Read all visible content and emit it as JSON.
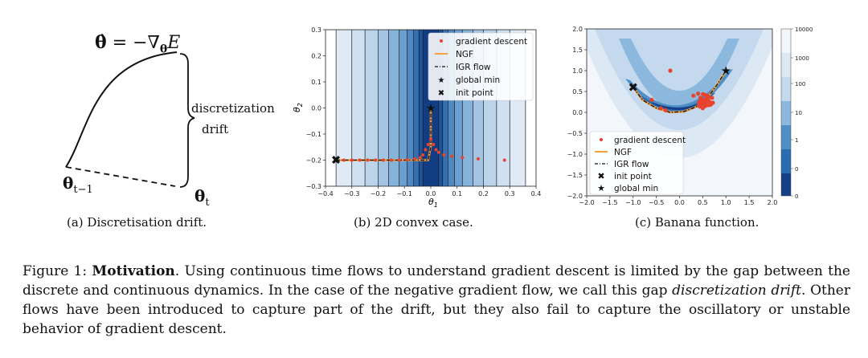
{
  "panel_a": {
    "equation_lhs": "θ̇",
    "equation_rhs": "= −∇",
    "equation_sub": "θ",
    "equation_E": "E",
    "bracket_label_1": "discretization",
    "bracket_label_2": "drift",
    "theta_prev": "θ",
    "theta_prev_sub": "t−1",
    "theta_next": "θ",
    "theta_next_sub": "t",
    "subcaption": "(a) Discretisation drift."
  },
  "panel_b": {
    "subcaption": "(b) 2D convex case.",
    "xlabel": "θ",
    "xlabel_sub": "1",
    "ylabel": "θ",
    "ylabel_sub": "2",
    "xticks": [
      "−0.4",
      "−0.3",
      "−0.2",
      "−0.1",
      "0.0",
      "0.1",
      "0.2",
      "0.3",
      "0.4"
    ],
    "yticks": [
      "0.3",
      "0.2",
      "0.1",
      "0.0",
      "−0.1",
      "−0.2",
      "−0.3"
    ],
    "legend": [
      "gradient descent",
      "NGF",
      "IGR flow",
      "global min",
      "init point"
    ]
  },
  "panel_c": {
    "subcaption": "(c) Banana function.",
    "xticks": [
      "−2.0",
      "−1.5",
      "−1.0",
      "−0.5",
      "0.0",
      "0.5",
      "1.0",
      "1.5",
      "2.0"
    ],
    "yticks": [
      "2.0",
      "1.5",
      "1.0",
      "0.5",
      "0.0",
      "−0.5",
      "−1.0",
      "−1.5",
      "−2.0"
    ],
    "colorbar_ticks": [
      "10000",
      "1000",
      "100",
      "10",
      "1",
      "0",
      "0"
    ],
    "legend": [
      "gradient descent",
      "NGF",
      "IGR flow",
      "init point",
      "global min"
    ]
  },
  "caption": {
    "prefix": "Figure 1: ",
    "bold": "Motivation",
    "text1": ". Using continuous time flows to understand gradient descent is limited by the gap between the discrete and continuous dynamics. In the case of the negative gradient flow, we call this gap ",
    "italic": "discretization drift",
    "text2": ". Other flows have been introduced to capture part of the drift, but they also fail to capture the oscillatory or unstable behavior of gradient descent."
  },
  "chart_data": [
    {
      "type": "scatter",
      "xlabel": "θ1",
      "ylabel": "θ2",
      "xlim": [
        -0.4,
        0.4
      ],
      "ylim": [
        -0.3,
        0.3
      ],
      "series": [
        {
          "name": "gradient descent",
          "x": [
            -0.36,
            -0.33,
            -0.3,
            -0.27,
            -0.24,
            -0.21,
            -0.18,
            -0.15,
            -0.12,
            -0.09,
            -0.06,
            -0.04,
            -0.03,
            -0.02,
            -0.01,
            0.0,
            0.01,
            0.02,
            0.03,
            0.05,
            0.08,
            0.12,
            0.18,
            0.28
          ],
          "y": [
            -0.2,
            -0.2,
            -0.2,
            -0.2,
            -0.2,
            -0.2,
            -0.2,
            -0.2,
            -0.2,
            -0.198,
            -0.195,
            -0.19,
            -0.18,
            -0.16,
            -0.14,
            -0.12,
            -0.14,
            -0.16,
            -0.17,
            -0.18,
            -0.185,
            -0.19,
            -0.195,
            -0.2
          ]
        },
        {
          "name": "NGF",
          "x": [
            -0.36,
            -0.01,
            0.0,
            0.0
          ],
          "y": [
            -0.2,
            -0.2,
            -0.15,
            0.0
          ]
        },
        {
          "name": "IGR flow",
          "x": [
            -0.36,
            -0.01,
            0.0,
            0.0
          ],
          "y": [
            -0.2,
            -0.2,
            -0.15,
            0.0
          ]
        },
        {
          "name": "global min",
          "x": [
            0.0
          ],
          "y": [
            0.0
          ]
        },
        {
          "name": "init point",
          "x": [
            -0.36
          ],
          "y": [
            -0.2
          ]
        }
      ]
    },
    {
      "type": "scatter",
      "xlim": [
        -2.0,
        2.0
      ],
      "ylim": [
        -2.0,
        2.0
      ],
      "series": [
        {
          "name": "gradient descent",
          "x": [
            -0.2,
            -0.6,
            -0.3,
            -0.4,
            0.3,
            0.45,
            0.5,
            0.55,
            0.6,
            0.5,
            0.55,
            0.65,
            0.4,
            0.6,
            0.7,
            0.5
          ],
          "y": [
            1.0,
            0.3,
            0.05,
            0.1,
            0.4,
            0.35,
            0.3,
            0.25,
            0.3,
            0.2,
            0.15,
            0.25,
            0.45,
            0.4,
            0.35,
            0.1
          ]
        },
        {
          "name": "NGF",
          "x": [
            -1.0,
            -0.8,
            -0.5,
            -0.2,
            0.1,
            0.4,
            0.6,
            0.8,
            1.0
          ],
          "y": [
            0.6,
            0.3,
            0.1,
            0.0,
            0.02,
            0.15,
            0.35,
            0.65,
            1.0
          ]
        },
        {
          "name": "IGR flow",
          "x": [
            -1.0,
            -0.8,
            -0.5,
            -0.2,
            0.1,
            0.4,
            0.6,
            0.8,
            1.0
          ],
          "y": [
            0.6,
            0.3,
            0.1,
            0.0,
            0.02,
            0.15,
            0.35,
            0.65,
            1.0
          ]
        },
        {
          "name": "init point",
          "x": [
            -1.0
          ],
          "y": [
            0.6
          ]
        },
        {
          "name": "global min",
          "x": [
            1.0
          ],
          "y": [
            1.0
          ]
        }
      ]
    }
  ],
  "colors": {
    "gd": "#e8432d",
    "ngf": "#f5a03c",
    "contour_dark": "#123d84",
    "contour_light": "#f3f7fc"
  }
}
